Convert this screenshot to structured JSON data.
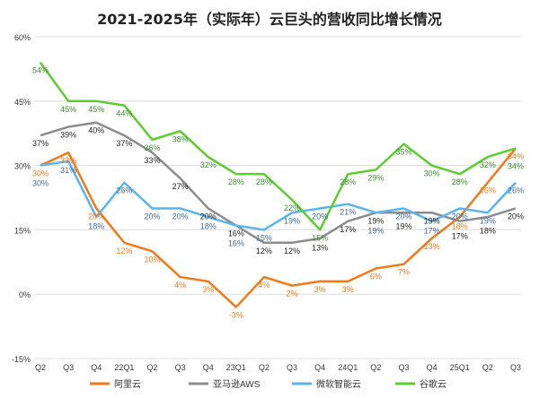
{
  "chart_data": {
    "type": "line",
    "title": "2021-2025年（实际年）云巨头的营收同比增长情况",
    "categories": [
      "Q2",
      "Q3",
      "Q4",
      "22Q1",
      "Q2",
      "Q3",
      "Q4",
      "23Q1",
      "Q2",
      "Q3",
      "Q4",
      "24Q1",
      "Q2",
      "Q3",
      "Q4",
      "25Q1",
      "Q2",
      "Q3"
    ],
    "ylim": [
      -15,
      60
    ],
    "yticks": [
      "-15%",
      "0%",
      "15%",
      "30%",
      "45%",
      "60%"
    ],
    "ytick_values": [
      -15,
      0,
      15,
      30,
      45,
      60
    ],
    "grid": true,
    "legend_position": "bottom",
    "series": [
      {
        "name": "阿里云",
        "color": "#f07a1a",
        "label_color": "#f07a1a",
        "values": [
          30,
          33,
          20,
          12,
          10,
          4,
          3,
          -3,
          4,
          2,
          3,
          3,
          6,
          7,
          13,
          18,
          26,
          34
        ]
      },
      {
        "name": "亚马逊AWS",
        "color": "#8c8c8c",
        "label_color": "#222222",
        "values": [
          37,
          39,
          40,
          37,
          33,
          27,
          20,
          16,
          12,
          12,
          13,
          17,
          19,
          19,
          19,
          17,
          18,
          20
        ]
      },
      {
        "name": "微软智能云",
        "color": "#5ab4f0",
        "label_color": "#3d6a98",
        "values": [
          30,
          31,
          18,
          26,
          20,
          20,
          18,
          16,
          15,
          19,
          20,
          21,
          19,
          20,
          17,
          20,
          19,
          26
        ]
      },
      {
        "name": "谷歌云",
        "color": "#5ccc2e",
        "label_color": "#3f8a34",
        "values": [
          54,
          45,
          45,
          44,
          36,
          38,
          32,
          28,
          28,
          22,
          15,
          28,
          29,
          35,
          30,
          28,
          32,
          34
        ]
      }
    ]
  }
}
